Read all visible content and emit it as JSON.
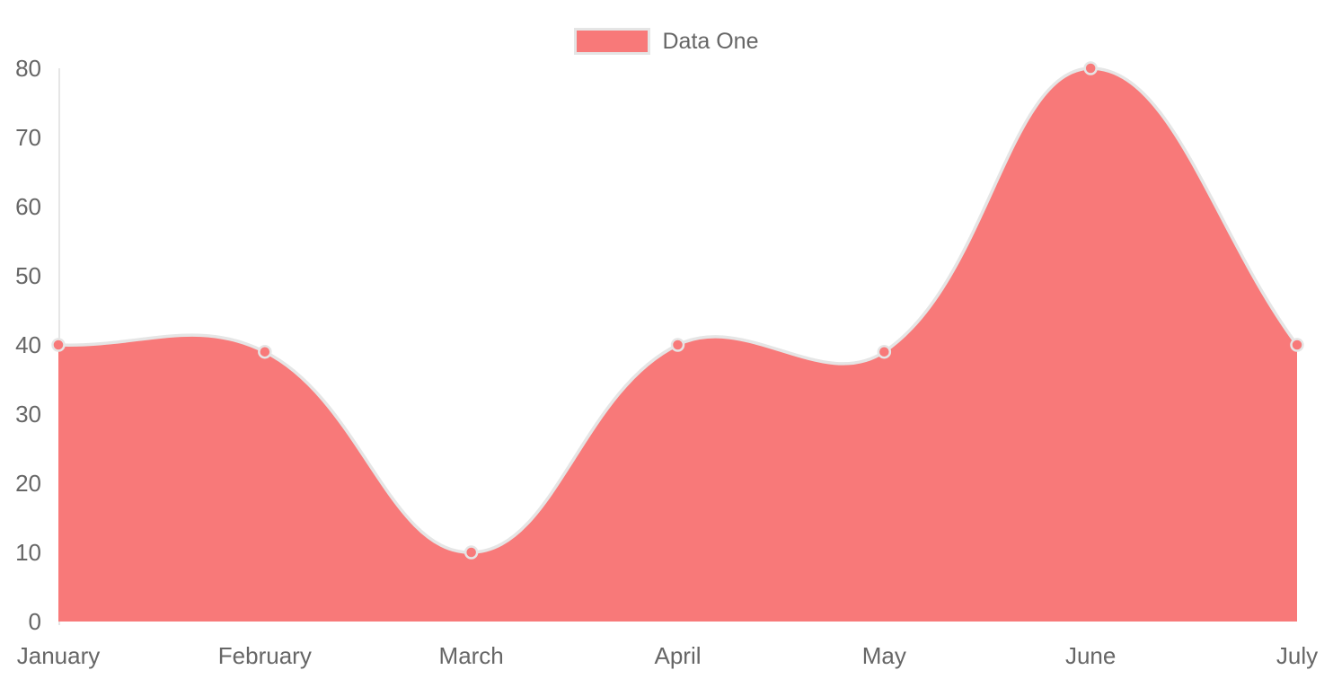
{
  "legend": {
    "items": [
      {
        "label": "Data One",
        "swatch_color": "#f87979",
        "swatch_border": "#e5e5e5"
      }
    ]
  },
  "chart_data": {
    "type": "area",
    "title": "",
    "xlabel": "",
    "ylabel": "",
    "categories": [
      "January",
      "February",
      "March",
      "April",
      "May",
      "June",
      "July"
    ],
    "series": [
      {
        "name": "Data One",
        "values": [
          40,
          39,
          10,
          40,
          39,
          80,
          40
        ]
      }
    ],
    "ylim": [
      0,
      80
    ],
    "yticks": [
      0,
      10,
      20,
      30,
      40,
      50,
      60,
      70,
      80
    ],
    "grid": false,
    "legend_position": "top",
    "line_tension": 0.4,
    "colors": {
      "area_fill": "#f87979",
      "line_stroke": "#e5e5e5",
      "point_fill": "#f87979",
      "point_stroke": "#e5e5e5",
      "axis_line": "#e6e6e6",
      "label_text": "#666666"
    }
  }
}
